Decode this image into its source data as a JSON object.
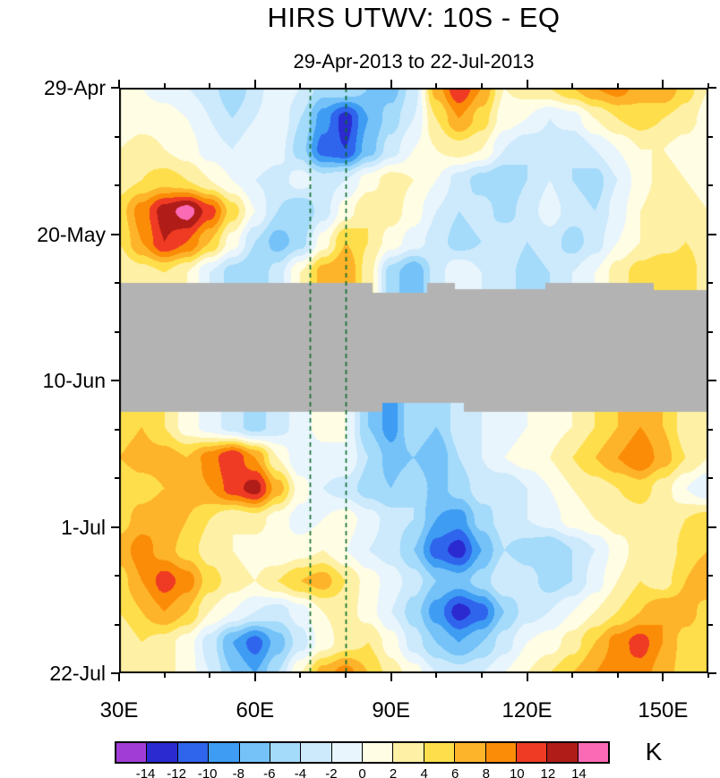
{
  "title": "HIRS UTWV: 10S - EQ",
  "subtitle": "29-Apr-2013 to 22-Jul-2013",
  "colorbar": {
    "labels": [
      "-14",
      "-12",
      "-10",
      "-8",
      "-6",
      "-4",
      "-2",
      "0",
      "2",
      "4",
      "6",
      "8",
      "10",
      "12",
      "14"
    ],
    "unit": "K"
  },
  "chart_data": {
    "type": "heatmap",
    "title": "HIRS UTWV: 10S - EQ",
    "subtitle": "29-Apr-2013 to 22-Jul-2013",
    "units": "K",
    "x_axis": {
      "label": "longitude",
      "range": [
        30,
        160
      ],
      "major_ticks": [
        30,
        60,
        90,
        120,
        150
      ],
      "major_tick_labels": [
        "30E",
        "60E",
        "90E",
        "120E",
        "150E"
      ],
      "minor_step": 10
    },
    "y_axis": {
      "label": "date",
      "range_days": [
        0,
        84
      ],
      "major_tick_days": [
        0,
        21,
        42,
        63,
        84
      ],
      "major_tick_labels": [
        "29-Apr",
        "20-May",
        "10-Jun",
        "1-Jul",
        "22-Jul"
      ],
      "minor_step_days": 7
    },
    "levels": [
      -14,
      -12,
      -10,
      -8,
      -6,
      -4,
      -2,
      0,
      2,
      4,
      6,
      8,
      10,
      12,
      14
    ],
    "colors": [
      "#a13dd6",
      "#2a2ad0",
      "#2f64ed",
      "#3e9cf3",
      "#74c2f8",
      "#a4dafa",
      "#cdeafc",
      "#e9f5fd",
      "#fffde4",
      "#fef0a5",
      "#fedf4b",
      "#feb42a",
      "#fb8c07",
      "#ef3b24",
      "#b01c17",
      "#fb6ab4"
    ],
    "missing_band": {
      "color": "#b3b3b3",
      "top_day": 28,
      "bottom_day": 46.5,
      "top_edge_steps": [
        {
          "lon": [
            86,
            98
          ],
          "day": 29.4
        },
        {
          "lon": [
            104,
            124
          ],
          "day": 28.9
        },
        {
          "lon": [
            148,
            160
          ],
          "day": 29.0
        }
      ],
      "bottom_edge_steps": [
        {
          "lon": [
            88,
            106
          ],
          "day": 45.2
        }
      ]
    },
    "reference_lines": {
      "color": "#0a6b2a",
      "dash": [
        5,
        4
      ],
      "longitudes": [
        72,
        80
      ]
    },
    "grid": {
      "lon_start": 30,
      "lon_step": 5,
      "day_step": 4.42105,
      "values": [
        [
          1,
          0,
          -1,
          -2,
          -3,
          -6,
          -3,
          0,
          -2,
          -5,
          -4,
          -6,
          -7,
          -3,
          7,
          12,
          8,
          2,
          3,
          4,
          6,
          8,
          9,
          7,
          8,
          5,
          2
        ],
        [
          0,
          1,
          1,
          0,
          -2,
          -4,
          -2,
          0,
          -4,
          -9,
          -13,
          -8,
          -5,
          -2,
          4,
          8,
          5,
          1,
          0,
          -2,
          -1,
          2,
          4,
          5,
          4,
          3,
          1
        ],
        [
          2,
          3,
          2,
          1,
          -1,
          -2,
          0,
          -1,
          -5,
          -11,
          -12,
          -7,
          -3,
          0,
          2,
          3,
          2,
          -2,
          -4,
          -3,
          -4,
          -2,
          0,
          2,
          2,
          1,
          0
        ],
        [
          3,
          4,
          5,
          4,
          2,
          0,
          -2,
          -3,
          -1,
          -3,
          -2,
          1,
          3,
          2,
          0,
          -3,
          -5,
          -6,
          -4,
          -2,
          -4,
          -5,
          -2,
          1,
          3,
          2,
          1
        ],
        [
          5,
          9,
          13,
          15,
          11,
          5,
          0,
          -4,
          -6,
          -3,
          1,
          4,
          3,
          1,
          -2,
          -4,
          -3,
          -5,
          -3,
          -1,
          -3,
          -4,
          -1,
          2,
          4,
          3,
          2
        ],
        [
          4,
          8,
          12,
          10,
          6,
          1,
          -4,
          -7,
          -5,
          1,
          6,
          4,
          1,
          -1,
          -3,
          -5,
          -4,
          -2,
          -4,
          -3,
          -5,
          -3,
          0,
          2,
          3,
          4,
          3
        ],
        [
          2,
          3,
          4,
          2,
          -2,
          -5,
          -6,
          -3,
          2,
          7,
          8,
          3,
          -5,
          -8,
          -3,
          0,
          -2,
          -3,
          -5,
          -4,
          -2,
          0,
          3,
          5,
          6,
          5,
          3
        ],
        [
          0,
          0,
          0,
          0,
          0,
          0,
          0,
          0,
          0,
          0,
          0,
          0,
          0,
          0,
          0,
          0,
          0,
          0,
          0,
          0,
          0,
          0,
          0,
          0,
          0,
          0,
          0
        ],
        [
          0,
          0,
          0,
          0,
          0,
          0,
          0,
          0,
          0,
          0,
          0,
          0,
          0,
          0,
          0,
          0,
          0,
          0,
          0,
          0,
          0,
          0,
          0,
          0,
          0,
          0,
          0
        ],
        [
          0,
          0,
          0,
          0,
          0,
          0,
          0,
          0,
          0,
          0,
          0,
          0,
          0,
          0,
          0,
          0,
          0,
          0,
          0,
          0,
          0,
          0,
          0,
          0,
          0,
          0,
          0
        ],
        [
          0,
          0,
          0,
          0,
          0,
          0,
          0,
          0,
          0,
          0,
          0,
          0,
          0,
          0,
          0,
          0,
          0,
          0,
          0,
          0,
          0,
          0,
          0,
          0,
          0,
          0,
          0
        ],
        [
          5,
          6,
          4,
          1,
          -1,
          -3,
          -5,
          -3,
          -1,
          1,
          0,
          -6,
          -9,
          -4,
          -6,
          -3,
          -2,
          -1,
          0,
          1,
          2,
          4,
          6,
          8,
          6,
          3,
          2
        ],
        [
          6,
          7,
          7,
          6,
          9,
          12,
          8,
          2,
          -2,
          -1,
          0,
          -4,
          -7,
          -6,
          -8,
          -4,
          -2,
          0,
          1,
          2,
          4,
          6,
          8,
          10,
          7,
          4,
          2
        ],
        [
          4,
          5,
          6,
          7,
          8,
          11,
          13,
          7,
          1,
          -2,
          -3,
          -5,
          -6,
          -4,
          -7,
          -5,
          -3,
          -4,
          -2,
          0,
          2,
          3,
          4,
          5,
          3,
          0,
          -2
        ],
        [
          5,
          7,
          8,
          6,
          4,
          2,
          3,
          1,
          -1,
          0,
          1,
          -1,
          -3,
          -4,
          -8,
          -9,
          -5,
          -3,
          -2,
          -1,
          1,
          2,
          3,
          3,
          2,
          4,
          5
        ],
        [
          7,
          9,
          7,
          5,
          3,
          2,
          1,
          0,
          1,
          2,
          0,
          -2,
          -3,
          -6,
          -11,
          -13,
          -8,
          -4,
          -5,
          -6,
          -4,
          -2,
          1,
          3,
          2,
          5,
          6
        ],
        [
          5,
          8,
          11,
          9,
          5,
          3,
          2,
          4,
          6,
          7,
          4,
          1,
          -1,
          -3,
          -6,
          -7,
          -5,
          -2,
          -3,
          -5,
          -4,
          -1,
          2,
          4,
          3,
          6,
          8
        ],
        [
          4,
          6,
          8,
          6,
          2,
          0,
          -2,
          -3,
          -1,
          2,
          3,
          1,
          -2,
          -5,
          -9,
          -13,
          -11,
          -6,
          -3,
          -2,
          0,
          2,
          4,
          6,
          8,
          7,
          5
        ],
        [
          2,
          4,
          3,
          1,
          -3,
          -8,
          -11,
          -7,
          -3,
          1,
          3,
          4,
          1,
          -3,
          -6,
          -8,
          -6,
          -3,
          0,
          1,
          3,
          6,
          9,
          11,
          8,
          5,
          4
        ],
        [
          3,
          4,
          3,
          1,
          -2,
          -6,
          -8,
          -4,
          2,
          7,
          9,
          6,
          3,
          1,
          -2,
          -3,
          -2,
          0,
          2,
          4,
          6,
          8,
          10,
          9,
          7,
          5,
          4
        ]
      ]
    }
  }
}
